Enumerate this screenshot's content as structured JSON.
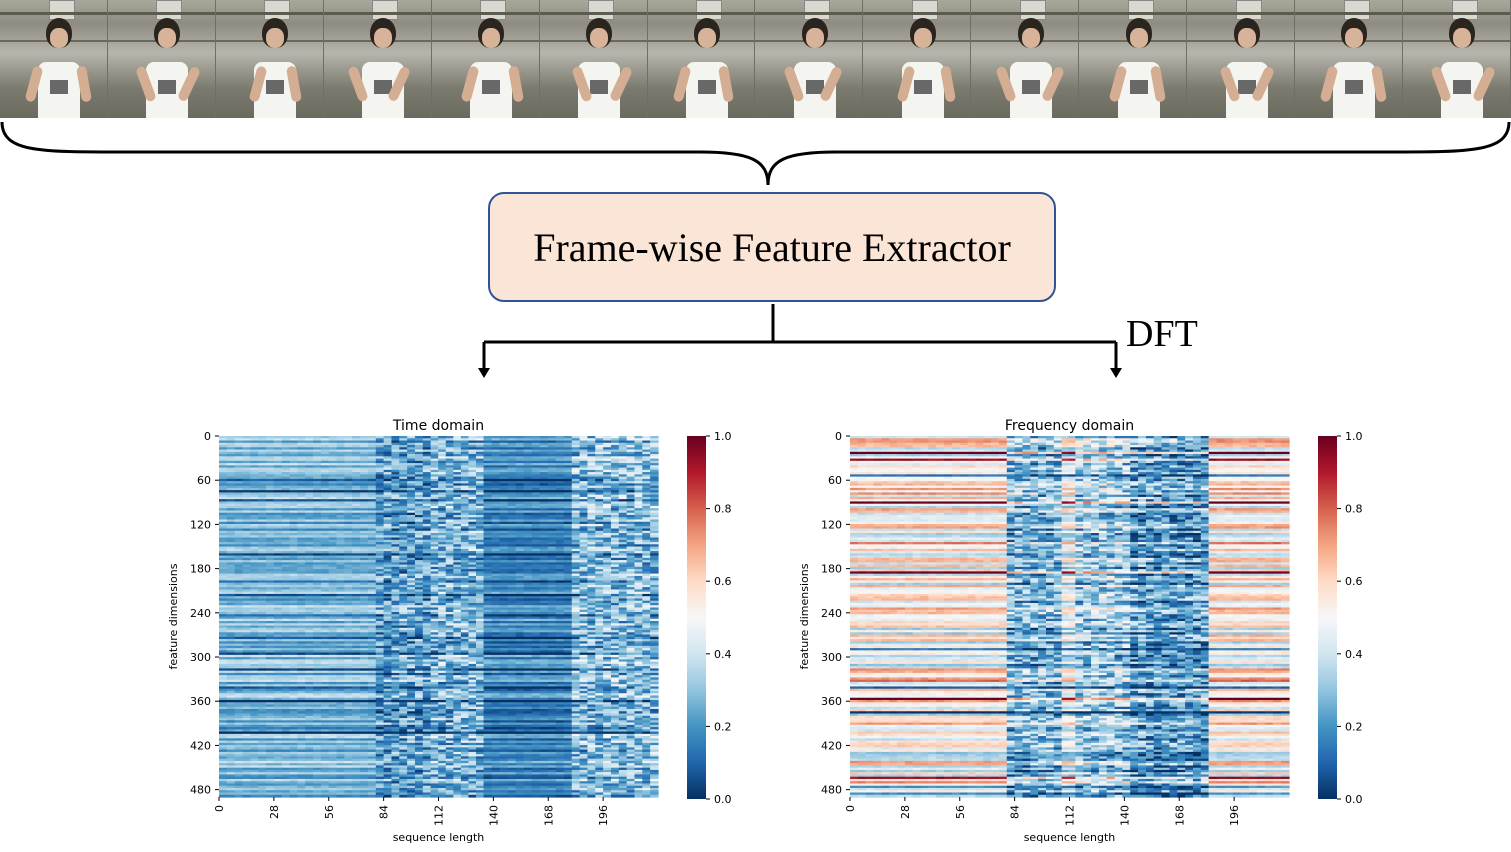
{
  "video_strip": {
    "frame_count": 14
  },
  "extractor": {
    "label": "Frame-wise Feature Extractor"
  },
  "transform": {
    "label": "DFT"
  },
  "colors": {
    "box_fill": "#fbe5d6",
    "box_border": "#2f5597",
    "colormap": "RdBu_r",
    "low": "#053061",
    "mid": "#f7f7f7",
    "high": "#67001f"
  },
  "chart_data": [
    {
      "type": "heatmap",
      "title": "Time domain",
      "xlabel": "sequence length",
      "ylabel": "feature dimensions",
      "x_ticks": [
        "0",
        "28",
        "56",
        "84",
        "112",
        "140",
        "168",
        "196"
      ],
      "y_ticks": [
        "0",
        "60",
        "120",
        "180",
        "240",
        "300",
        "360",
        "420",
        "480"
      ],
      "colorbar": {
        "min": 0.0,
        "max": 1.0,
        "ticks": [
          "0.0",
          "0.2",
          "0.4",
          "0.6",
          "0.8",
          "1.0"
        ]
      },
      "x_range": [
        0,
        224
      ],
      "y_range": [
        0,
        490
      ],
      "profile": {
        "column_segments": [
          {
            "from": 0,
            "to": 80,
            "mean": 0.28
          },
          {
            "from": 80,
            "to": 108,
            "mean": 0.22
          },
          {
            "from": 108,
            "to": 135,
            "mean": 0.27
          },
          {
            "from": 135,
            "to": 180,
            "mean": 0.17
          },
          {
            "from": 180,
            "to": 224,
            "mean": 0.29
          }
        ]
      }
    },
    {
      "type": "heatmap",
      "title": "Frequency domain",
      "xlabel": "sequence length",
      "ylabel": "feature dimensions",
      "x_ticks": [
        "0",
        "28",
        "56",
        "84",
        "112",
        "140",
        "168",
        "196"
      ],
      "y_ticks": [
        "0",
        "60",
        "120",
        "180",
        "240",
        "300",
        "360",
        "420",
        "480"
      ],
      "colorbar": {
        "min": 0.0,
        "max": 1.0,
        "ticks": [
          "0.0",
          "0.2",
          "0.4",
          "0.6",
          "0.8",
          "1.0"
        ]
      },
      "x_range": [
        0,
        224
      ],
      "y_range": [
        0,
        490
      ],
      "profile": {
        "column_segments": [
          {
            "from": 0,
            "to": 80,
            "mean": 0.52
          },
          {
            "from": 80,
            "to": 108,
            "mean": 0.28
          },
          {
            "from": 108,
            "to": 115,
            "mean": 0.45
          },
          {
            "from": 115,
            "to": 143,
            "mean": 0.33
          },
          {
            "from": 143,
            "to": 183,
            "mean": 0.22
          },
          {
            "from": 183,
            "to": 224,
            "mean": 0.53
          }
        ]
      }
    }
  ]
}
